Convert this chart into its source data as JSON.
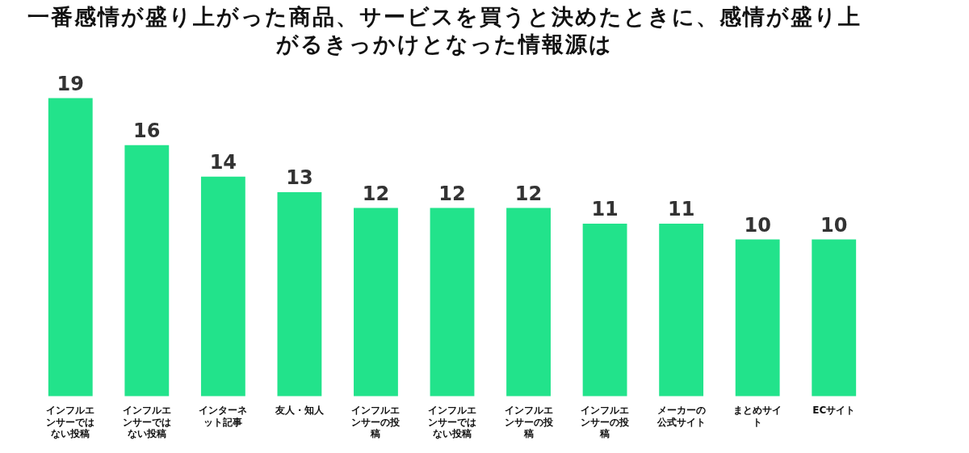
{
  "chart_data": {
    "type": "bar",
    "title": "一番感情が盛り上がった商品、サービスを買うと決めたときに、感情が盛り上がるきっかけとなった情報源は",
    "categories": [
      "インフルエンサーではない投稿",
      "インフルエンサーではない投稿",
      "インターネット記事",
      "友人・知人",
      "インフルエンサーの投稿",
      "インフルエンサーではない投稿",
      "インフルエンサーの投稿",
      "インフルエンサーの投稿",
      "メーカーの公式サイト",
      "まとめサイト",
      "ECサイト"
    ],
    "values": [
      19,
      16,
      14,
      13,
      12,
      12,
      12,
      11,
      11,
      10,
      10
    ],
    "color": "#22e38b",
    "data_labels": true
  }
}
